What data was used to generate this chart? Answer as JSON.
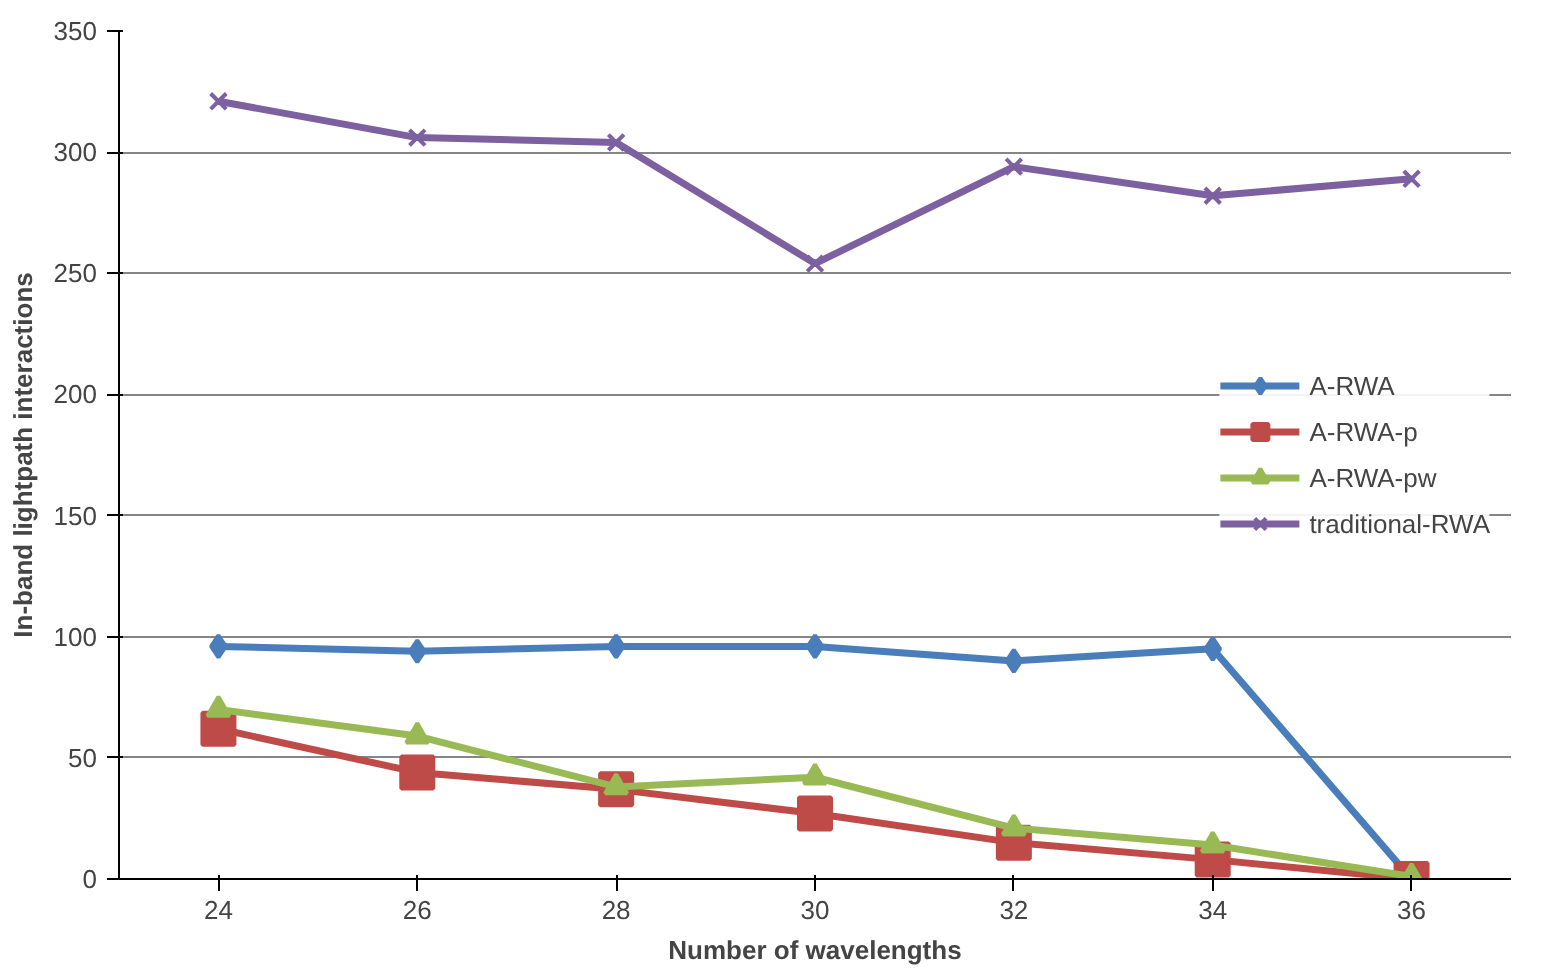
{
  "chart_data": {
    "type": "line",
    "xlabel": "Number of wavelengths",
    "ylabel": "In-band lightpath interactions",
    "categories": [
      "24",
      "26",
      "28",
      "30",
      "32",
      "34",
      "36"
    ],
    "series": [
      {
        "name": "A-RWA",
        "color": "#4a7ebb",
        "marker": "diamond",
        "values": [
          96,
          94,
          96,
          96,
          90,
          95,
          0
        ]
      },
      {
        "name": "A-RWA-p",
        "color": "#be4b48",
        "marker": "square",
        "values": [
          62,
          44,
          37,
          27,
          15,
          8,
          0
        ]
      },
      {
        "name": "A-RWA-pw",
        "color": "#98b954",
        "marker": "triangle",
        "values": [
          70,
          59,
          38,
          42,
          21,
          14,
          1
        ]
      },
      {
        "name": "traditional-RWA",
        "color": "#7d60a0",
        "marker": "cross",
        "values": [
          321,
          306,
          304,
          254,
          294,
          282,
          289
        ]
      }
    ],
    "ylim": [
      0,
      350
    ],
    "yticks": [
      0,
      50,
      100,
      150,
      200,
      250,
      300,
      350
    ],
    "grid": "y",
    "legend": "right",
    "line_style": "solid"
  }
}
